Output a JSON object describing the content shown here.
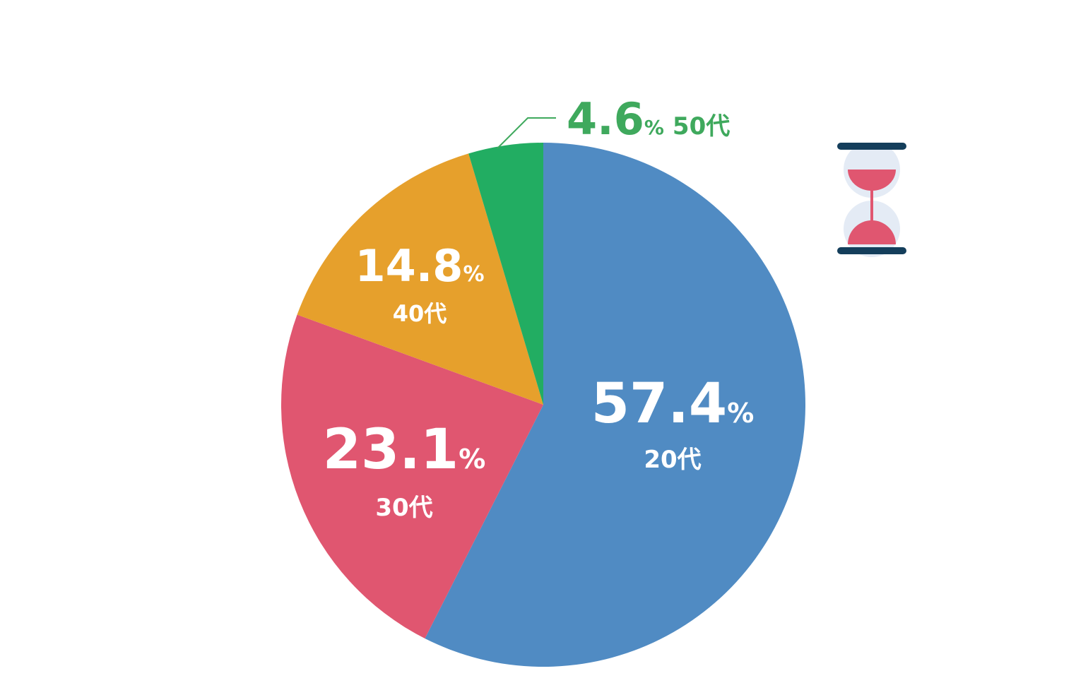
{
  "chart_data": {
    "type": "pie",
    "slices": [
      {
        "label": "20代",
        "value": 57.4,
        "value_text": "57.4",
        "unit": "%",
        "color": "#508bc3"
      },
      {
        "label": "30代",
        "value": 23.1,
        "value_text": "23.1",
        "unit": "%",
        "color": "#e05670"
      },
      {
        "label": "40代",
        "value": 14.8,
        "value_text": "14.8",
        "unit": "%",
        "color": "#e6a02c"
      },
      {
        "label": "50代",
        "value": 4.6,
        "value_text": "4.6",
        "unit": "%",
        "color": "#22ad62"
      }
    ],
    "outside_label_color": "#3fa95d",
    "start": "top",
    "direction": "clockwise"
  },
  "decoration": {
    "icon": "hourglass-icon",
    "colors": {
      "frame": "#143e5b",
      "sand": "#e05670",
      "glass": "#e4ebf5"
    }
  }
}
